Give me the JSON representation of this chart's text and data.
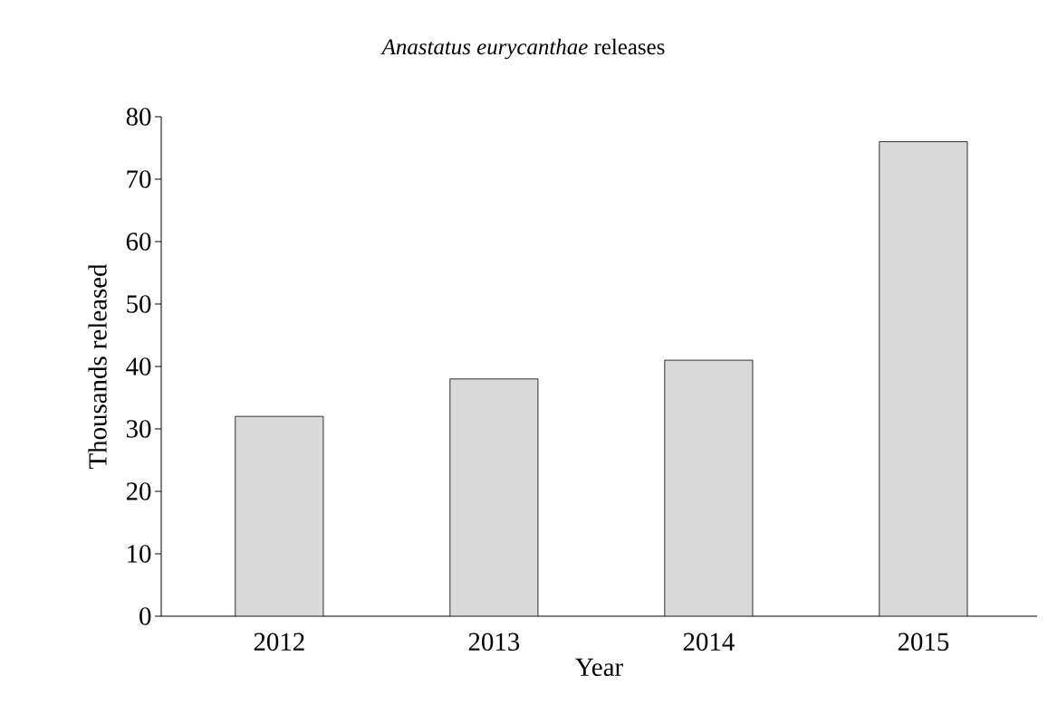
{
  "chart_data": {
    "type": "bar",
    "title": "*Anastatus eurycanthae* releases",
    "xlabel": "Year",
    "ylabel": "Thousands released",
    "categories": [
      "2012",
      "2013",
      "2014",
      "2015"
    ],
    "values": [
      32,
      38,
      41,
      76
    ],
    "color": "#d9d9d9",
    "ylim": [
      0,
      80
    ],
    "yticks": [
      0,
      10,
      20,
      30,
      40,
      50,
      60,
      70,
      80
    ]
  }
}
